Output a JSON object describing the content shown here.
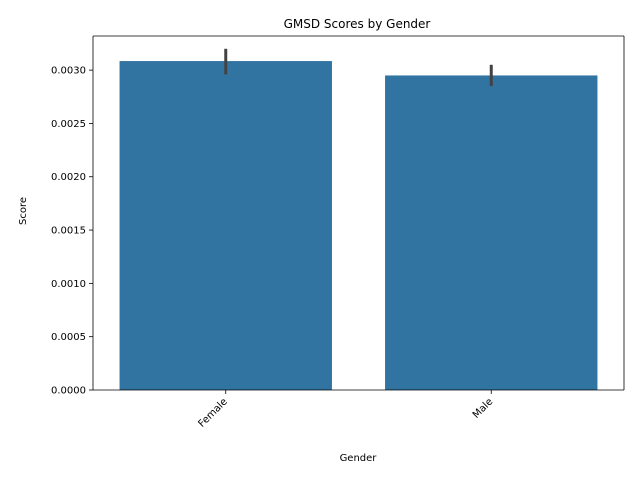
{
  "chart_data": {
    "type": "bar",
    "title": "GMSD Scores by Gender",
    "xlabel": "Gender",
    "ylabel": "Score",
    "categories": [
      "Female",
      "Male"
    ],
    "values": [
      0.003085,
      0.00295
    ],
    "error_bars": [
      [
        0.00296,
        0.0032
      ],
      [
        0.00285,
        0.00305
      ]
    ],
    "ylim": [
      0,
      0.00332
    ],
    "yticks": [
      0,
      0.0005,
      0.001,
      0.0015,
      0.002,
      0.0025,
      0.003
    ],
    "ytick_labels": [
      "0.0000",
      "0.0005",
      "0.0010",
      "0.0015",
      "0.0020",
      "0.0025",
      "0.0030"
    ],
    "bar_color": "#3274a1",
    "error_color": "#424242",
    "grid": false
  }
}
